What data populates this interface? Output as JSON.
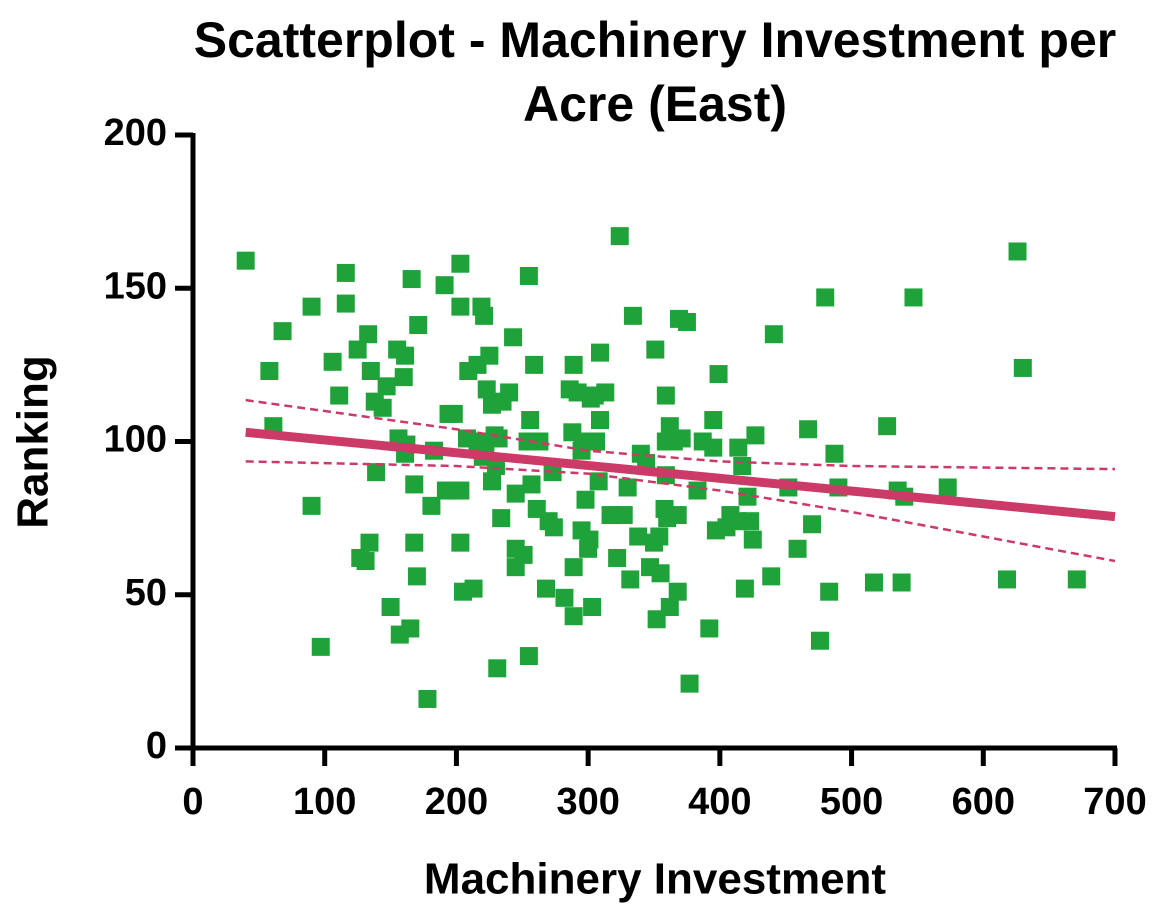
{
  "chart_data": {
    "type": "scatter",
    "title": "Scatterplot - Machinery Investment per Acre (East)",
    "xlabel": "Machinery Investment",
    "ylabel": "Ranking",
    "xlim": [
      0,
      700
    ],
    "xticks": [
      0,
      100,
      200,
      300,
      400,
      500,
      600,
      700
    ],
    "ylim": [
      0,
      200
    ],
    "yticks": [
      0,
      50,
      100,
      150,
      200
    ],
    "grid": false,
    "color": "#1fa23a",
    "marker": "square",
    "x": [
      40,
      58,
      68,
      61,
      90,
      90,
      97,
      106,
      111,
      116,
      116,
      125,
      133,
      135,
      138,
      139,
      147,
      144,
      127,
      131,
      134,
      150,
      155,
      161,
      160,
      156,
      162,
      161,
      157,
      165,
      166,
      171,
      168,
      168,
      170,
      178,
      181,
      183,
      191,
      194,
      198,
      192,
      198,
      203,
      203,
      203,
      203,
      205,
      208,
      209,
      213,
      216,
      219,
      221,
      216,
      222,
      220,
      223,
      225,
      227,
      229,
      227,
      230,
      232,
      231,
      234,
      235,
      240,
      243,
      245,
      245,
      245,
      251,
      254,
      255,
      256,
      255,
      257,
      259,
      261,
      263,
      268,
      270,
      273,
      274,
      282,
      286,
      288,
      289,
      289,
      289,
      292,
      295,
      295,
      296,
      298,
      300,
      301,
      302,
      303,
      305,
      306,
      308,
      309,
      309,
      313,
      317,
      322,
      324,
      327,
      330,
      332,
      334,
      338,
      340,
      344,
      347,
      350,
      351,
      352,
      354,
      355,
      358,
      359,
      359,
      359,
      360,
      362,
      362,
      365,
      368,
      368,
      369,
      371,
      375,
      377,
      383,
      387,
      392,
      395,
      395,
      397,
      399,
      405,
      408,
      413,
      414,
      417,
      419,
      421,
      423,
      425,
      427,
      439,
      441,
      452,
      459,
      467,
      470,
      476,
      480,
      483,
      487,
      490,
      517,
      527,
      535,
      538,
      540,
      547,
      573,
      618,
      626,
      630,
      671
    ],
    "values": [
      159,
      123,
      136,
      105,
      144,
      79,
      33,
      126,
      115,
      155,
      145,
      130,
      135,
      123,
      113,
      90,
      118,
      111,
      62,
      61,
      67,
      46,
      130,
      128,
      121,
      101,
      99,
      96,
      37,
      39,
      153,
      138,
      86,
      67,
      56,
      16,
      79,
      97,
      151,
      109,
      109,
      84,
      84,
      158,
      144,
      84,
      67,
      51,
      101,
      123,
      52,
      125,
      144,
      141,
      100,
      98,
      95,
      117,
      128,
      112,
      102,
      87,
      92,
      101,
      26,
      75,
      113,
      116,
      134,
      83,
      65,
      59,
      63,
      100,
      154,
      107,
      30,
      86,
      125,
      78,
      100,
      52,
      74,
      90,
      72,
      49,
      117,
      103,
      125,
      59,
      43,
      116,
      71,
      97,
      100,
      81,
      65,
      68,
      114,
      46,
      115,
      100,
      87,
      107,
      129,
      116,
      76,
      62,
      167,
      76,
      85,
      55,
      141,
      69,
      96,
      93,
      59,
      67,
      130,
      42,
      69,
      57,
      78,
      115,
      100,
      89,
      75,
      46,
      105,
      100,
      51,
      76,
      140,
      101,
      139,
      21,
      84,
      100,
      39,
      107,
      98,
      71,
      122,
      72,
      76,
      74,
      98,
      92,
      52,
      82,
      74,
      68,
      102,
      56,
      135,
      85,
      65,
      104,
      73,
      35,
      147,
      51,
      96,
      85,
      54,
      105,
      84,
      54,
      82,
      147,
      85,
      55,
      162,
      124,
      55
    ],
    "lines": [
      {
        "style": "solid",
        "color": "#cc3a67",
        "x": [
          40,
          700
        ],
        "values": [
          103,
          75.5
        ]
      },
      {
        "style": "dashed",
        "color": "#cc3a67",
        "x": [
          40,
          200,
          300,
          400,
          500,
          700
        ],
        "values": [
          113.5,
          104,
          97,
          93.5,
          92,
          91
        ]
      },
      {
        "style": "dashed",
        "color": "#cc3a67",
        "x": [
          40,
          200,
          300,
          400,
          500,
          700
        ],
        "values": [
          93.5,
          92,
          89.5,
          84,
          77,
          61
        ]
      }
    ]
  }
}
